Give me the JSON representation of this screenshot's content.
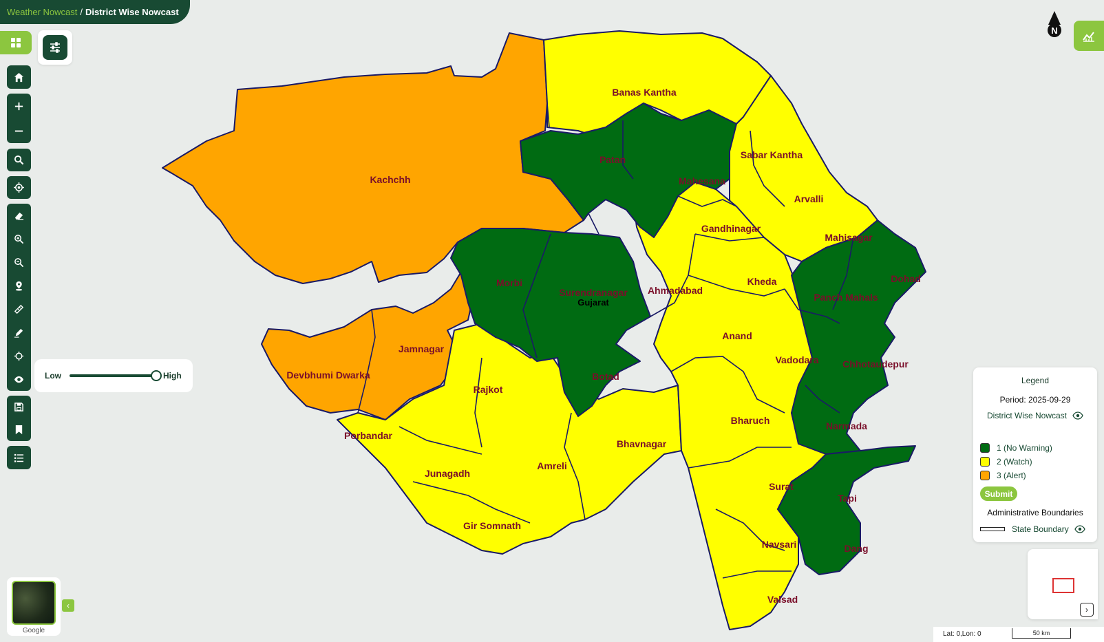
{
  "breadcrumb": {
    "parent": "Weather Nowcast",
    "separator": "/",
    "current": "District Wise Nowcast"
  },
  "slider": {
    "low_label": "Low",
    "high_label": "High",
    "level": 1.0
  },
  "basemap": {
    "label": "Google"
  },
  "north": {
    "label": "N"
  },
  "map": {
    "state_label": "Gujarat",
    "colors": {
      "no_warning": "#006b12",
      "watch": "#ffff00",
      "alert": "#ffa500",
      "border": "#1a1a66",
      "background": "#e9ecea"
    },
    "districts": [
      {
        "name": "Kachchh",
        "level": 3
      },
      {
        "name": "Banas Kantha",
        "level": 2
      },
      {
        "name": "Patan",
        "level": 1
      },
      {
        "name": "Mahesana",
        "level": 1
      },
      {
        "name": "Sabar Kantha",
        "level": 2
      },
      {
        "name": "Arvalli",
        "level": 2
      },
      {
        "name": "Gandhinagar",
        "level": 2
      },
      {
        "name": "Mahisagar",
        "level": 2
      },
      {
        "name": "Dohad",
        "level": 1
      },
      {
        "name": "Panch Mahals",
        "level": 1
      },
      {
        "name": "Kheda",
        "level": 2
      },
      {
        "name": "Ahmadabad",
        "level": 2
      },
      {
        "name": "Morbi",
        "level": 1
      },
      {
        "name": "Surendranagar",
        "level": 1
      },
      {
        "name": "Anand",
        "level": 2
      },
      {
        "name": "Vadodara",
        "level": 2
      },
      {
        "name": "Chhotaudepur",
        "level": 1
      },
      {
        "name": "Jamnagar",
        "level": 3
      },
      {
        "name": "Devbhumi Dwarka",
        "level": 3
      },
      {
        "name": "Rajkot",
        "level": 2
      },
      {
        "name": "Botad",
        "level": 1
      },
      {
        "name": "Bharuch",
        "level": 2
      },
      {
        "name": "Narmada",
        "level": 1
      },
      {
        "name": "Porbandar",
        "level": 2
      },
      {
        "name": "Bhavnagar",
        "level": 2
      },
      {
        "name": "Amreli",
        "level": 2
      },
      {
        "name": "Junagadh",
        "level": 2
      },
      {
        "name": "Surat",
        "level": 2
      },
      {
        "name": "Tapi",
        "level": 1
      },
      {
        "name": "Gir Somnath",
        "level": 2
      },
      {
        "name": "Dang",
        "level": 1
      },
      {
        "name": "Navsari",
        "level": 2
      },
      {
        "name": "Valsad",
        "level": 2
      }
    ]
  },
  "legend": {
    "title": "Legend",
    "period": "Period: 2025-09-29",
    "layer_name": "District Wise Nowcast",
    "items": [
      {
        "label": "1 (No Warning)",
        "color": "#006b12"
      },
      {
        "label": "2 (Watch)",
        "color": "#ffff00"
      },
      {
        "label": "3 (Alert)",
        "color": "#ffa500"
      }
    ],
    "submit_label": "Submit",
    "admin_title": "Administrative Boundaries",
    "admin_item": "State Boundary"
  },
  "overview": {
    "toggle": "›"
  },
  "footer": {
    "coords": "Lat: 0,Lon: 0",
    "scale": "50 km"
  }
}
